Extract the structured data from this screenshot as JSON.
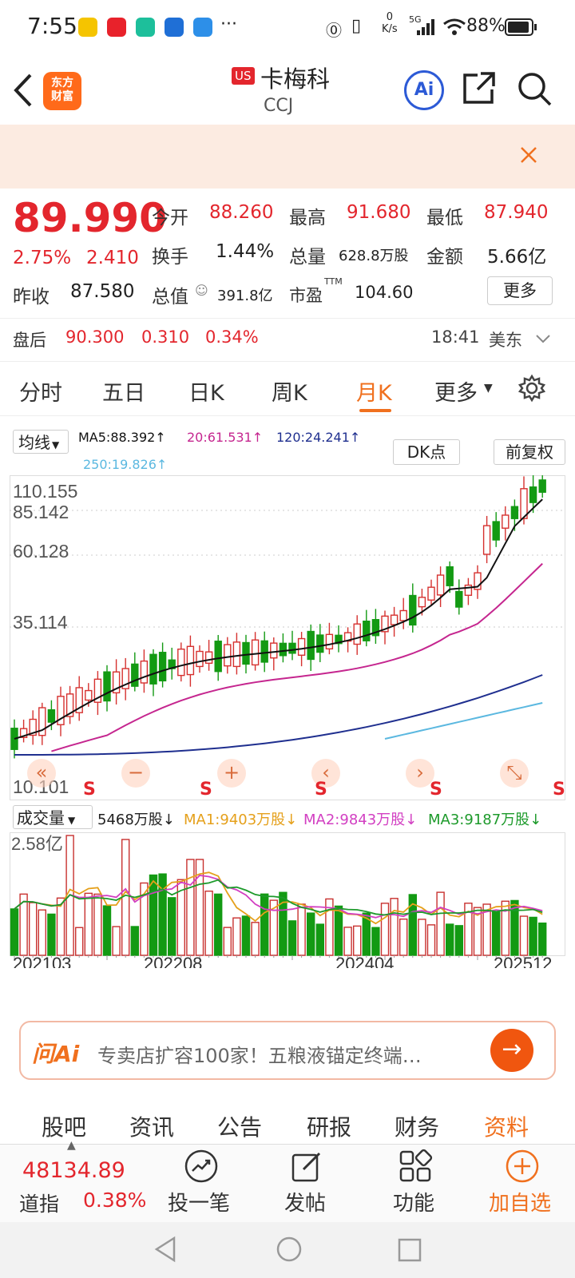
{
  "status_bar": {
    "time": "7:55",
    "netspeed_value": "0",
    "netspeed_unit": "K/s",
    "battery": "88%",
    "more": "···",
    "network": "5G"
  },
  "header": {
    "logo_line1": "东方",
    "logo_line2": "财富",
    "market_badge": "US",
    "stock_name": "卡梅科",
    "ticker": "CCJ",
    "ai_label": "Ai"
  },
  "quote": {
    "price": "89.990",
    "change_pct": "2.75%",
    "change": "2.410",
    "open_label": "今开",
    "open": "88.260",
    "high_label": "最高",
    "high": "91.680",
    "low_label": "最低",
    "low": "87.940",
    "turnover_label": "换手",
    "turnover": "1.44%",
    "volume_label": "总量",
    "volume": "628.8万股",
    "amount_label": "金额",
    "amount": "5.66亿",
    "prev_close_label": "昨收",
    "prev_close": "87.580",
    "mktcap_label": "总值",
    "mktcap": "391.8亿",
    "pe_label": "市盈",
    "pe_sup": "TTM",
    "pe": "104.60",
    "more_button": "更多"
  },
  "after_hours": {
    "label": "盘后",
    "price": "90.300",
    "change": "0.310",
    "change_pct": "0.34%",
    "time": "18:41",
    "region": "美东"
  },
  "tabs": [
    {
      "label": "分时"
    },
    {
      "label": "五日"
    },
    {
      "label": "日K"
    },
    {
      "label": "周K"
    },
    {
      "label": "月K"
    },
    {
      "label": "更多"
    }
  ],
  "indicators": {
    "ma_select": "均线",
    "ma5": "MA5:88.392↑",
    "ma20": "20:61.531↑",
    "ma120": "120:24.241↑",
    "ma250": "250:19.826↑",
    "dk_button": "DK点",
    "adjust_button": "前复权",
    "colors": {
      "ma5": "#111111",
      "ma20": "#c5268f",
      "ma120": "#1f2f8f",
      "ma250": "#5bb8e0"
    }
  },
  "kline": {
    "price_labels": [
      "110.155",
      "85.142",
      "60.128",
      "35.114",
      "10.101"
    ],
    "signal_labels": [
      "S",
      "S",
      "S",
      "S",
      "S"
    ],
    "controls": [
      "«",
      "−",
      "+",
      "‹",
      "›",
      "⤡"
    ]
  },
  "volume": {
    "select": "成交量",
    "current": "5468万股↓",
    "ma1": "MA1:9403万股↓",
    "ma2": "MA2:9843万股↓",
    "ma3": "MA3:9187万股↓",
    "max_label": "2.58亿",
    "dates": [
      "202103",
      "202208",
      "202404",
      "202512"
    ],
    "colors": {
      "up": "#c8312f",
      "down": "#139a13",
      "ma1": "#e5a01b",
      "ma2": "#d23fc2",
      "ma3": "#1d9a2b"
    }
  },
  "ai_bar": {
    "logo": "问Ai",
    "text": "专卖店扩容100家！五粮液锚定终端…"
  },
  "bottom_tabs": [
    {
      "label": "股吧"
    },
    {
      "label": "资讯"
    },
    {
      "label": "公告"
    },
    {
      "label": "研报"
    },
    {
      "label": "财务"
    },
    {
      "label": "资料"
    }
  ],
  "bottom_bar": {
    "index_value": "48134.89",
    "index_name": "道指",
    "index_change": "0.38%",
    "items": [
      {
        "label": "投一笔"
      },
      {
        "label": "发帖"
      },
      {
        "label": "功能"
      },
      {
        "label": "加自选"
      }
    ]
  }
}
